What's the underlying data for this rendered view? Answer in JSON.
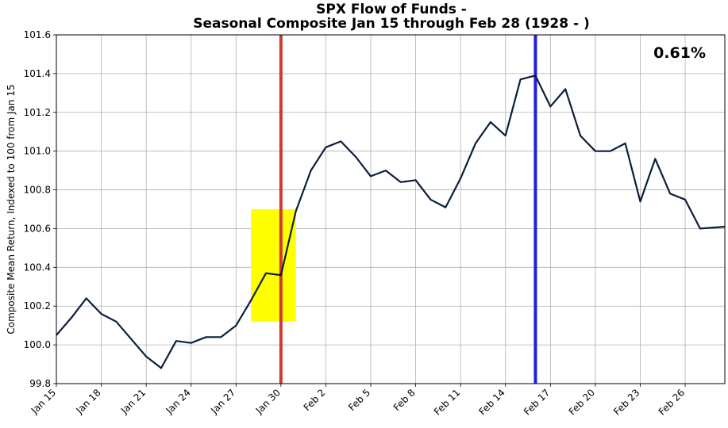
{
  "chart_data": {
    "type": "line",
    "title_line1": "SPX Flow of Funds -",
    "title_line2": "Seasonal Composite Jan 15 through Feb 28 (1928 - )",
    "xlabel": "",
    "ylabel": "Composite Mean Return, Indexed to 100 from Jan 15",
    "annotation": "0.61%",
    "ylim": [
      99.8,
      101.6
    ],
    "yticks": [
      99.8,
      100.0,
      100.2,
      100.4,
      100.6,
      100.8,
      101.0,
      101.2,
      101.4,
      101.6
    ],
    "ytick_labels": [
      "99.8",
      "100.0",
      "100.2",
      "100.4",
      "100.6",
      "100.8",
      "101.0",
      "101.2",
      "101.4",
      "101.6"
    ],
    "xlim_days": [
      15,
      59.65
    ],
    "xticks": [
      {
        "day": 15,
        "label": "Jan 15"
      },
      {
        "day": 18,
        "label": "Jan 18"
      },
      {
        "day": 21,
        "label": "Jan 21"
      },
      {
        "day": 24,
        "label": "Jan 24"
      },
      {
        "day": 27,
        "label": "Jan 27"
      },
      {
        "day": 30,
        "label": "Jan 30"
      },
      {
        "day": 33,
        "label": "Feb 2"
      },
      {
        "day": 36,
        "label": "Feb 5"
      },
      {
        "day": 39,
        "label": "Feb 8"
      },
      {
        "day": 42,
        "label": "Feb 11"
      },
      {
        "day": 45,
        "label": "Feb 14"
      },
      {
        "day": 48,
        "label": "Feb 17"
      },
      {
        "day": 51,
        "label": "Feb 20"
      },
      {
        "day": 54,
        "label": "Feb 23"
      },
      {
        "day": 57,
        "label": "Feb 26"
      }
    ],
    "grid": true,
    "series": [
      {
        "color": "#0b1f3a",
        "points": [
          [
            15,
            100.05
          ],
          [
            16,
            100.14
          ],
          [
            17,
            100.24
          ],
          [
            18,
            100.16
          ],
          [
            19,
            100.12
          ],
          [
            20,
            100.03
          ],
          [
            21,
            99.94
          ],
          [
            22,
            99.88
          ],
          [
            23,
            100.02
          ],
          [
            24,
            100.01
          ],
          [
            25,
            100.04
          ],
          [
            26,
            100.04
          ],
          [
            27,
            100.1
          ],
          [
            28,
            100.23
          ],
          [
            29,
            100.37
          ],
          [
            30,
            100.36
          ],
          [
            31,
            100.69
          ],
          [
            32,
            100.9
          ],
          [
            33,
            101.02
          ],
          [
            34,
            101.05
          ],
          [
            35,
            100.97
          ],
          [
            36,
            100.87
          ],
          [
            37,
            100.9
          ],
          [
            38,
            100.84
          ],
          [
            39,
            100.85
          ],
          [
            40,
            100.75
          ],
          [
            41,
            100.71
          ],
          [
            42,
            100.86
          ],
          [
            43,
            101.04
          ],
          [
            44,
            101.15
          ],
          [
            45,
            101.08
          ],
          [
            46,
            101.37
          ],
          [
            47,
            101.39
          ],
          [
            48,
            101.23
          ],
          [
            49,
            101.32
          ],
          [
            50,
            101.08
          ],
          [
            51,
            101.0
          ],
          [
            52,
            101.0
          ],
          [
            53,
            101.04
          ],
          [
            54,
            100.74
          ],
          [
            55,
            100.96
          ],
          [
            56,
            100.78
          ],
          [
            57,
            100.75
          ],
          [
            58,
            100.6
          ],
          [
            59.65,
            100.61
          ]
        ]
      }
    ],
    "highlight_box": {
      "x0": 28,
      "x1": 31,
      "y0": 100.12,
      "y1": 100.7,
      "color": "#ffff00"
    },
    "vlines": [
      {
        "day": 30,
        "color": "#cc3b33"
      },
      {
        "day": 47,
        "color": "#1f1fe0"
      }
    ]
  }
}
